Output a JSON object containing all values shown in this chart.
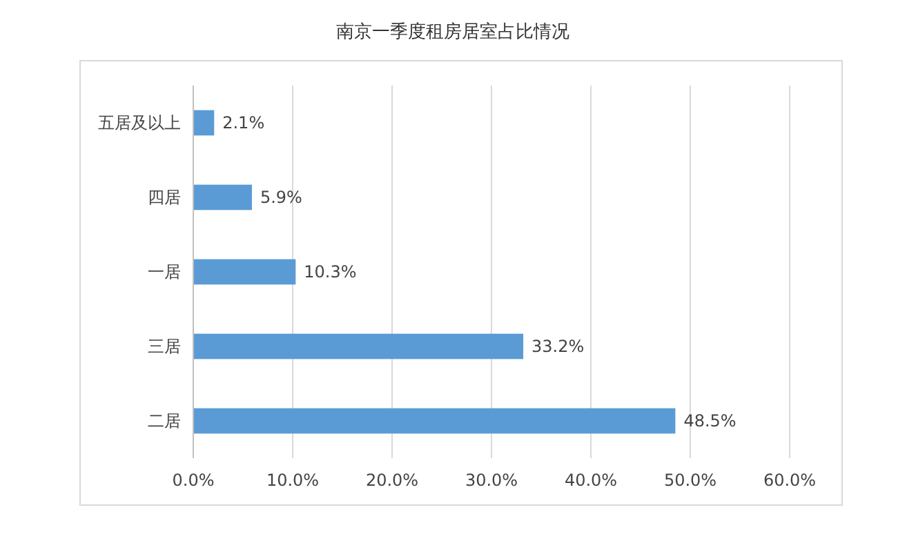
{
  "chart_data": {
    "type": "bar",
    "orientation": "horizontal",
    "title": "南京一季度租房居室占比情况",
    "categories": [
      "五居及以上",
      "四居",
      "一居",
      "三居",
      "二居"
    ],
    "values": [
      2.1,
      5.9,
      10.3,
      33.2,
      48.5
    ],
    "value_labels": [
      "2.1%",
      "5.9%",
      "10.3%",
      "33.2%",
      "48.5%"
    ],
    "color": "#5b9bd5",
    "xlim": [
      0,
      60
    ],
    "xticks": [
      {
        "value": 0,
        "label": "0.0%"
      },
      {
        "value": 10,
        "label": "10.0%"
      },
      {
        "value": 20,
        "label": "20.0%"
      },
      {
        "value": 30,
        "label": "30.0%"
      },
      {
        "value": 40,
        "label": "40.0%"
      },
      {
        "value": 50,
        "label": "50.0%"
      },
      {
        "value": 60,
        "label": "60.0%"
      }
    ],
    "grid": "x"
  }
}
